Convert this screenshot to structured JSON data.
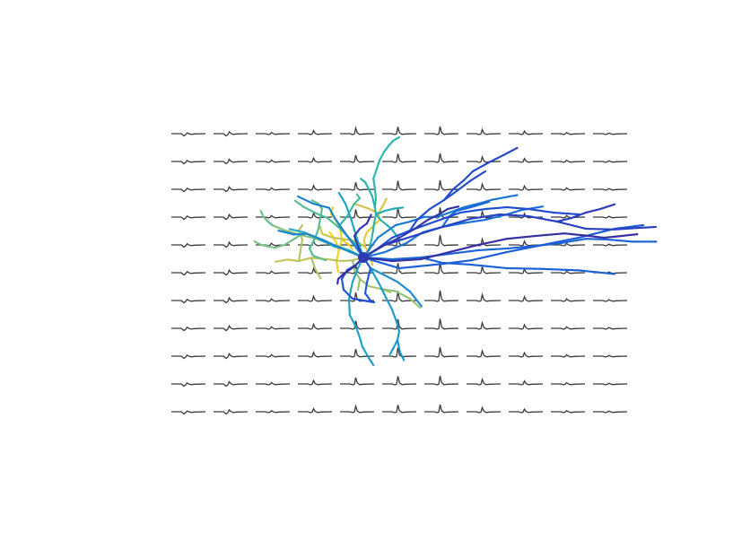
{
  "colors": {
    "background": "#ffffff",
    "trace": "#3a3a3a",
    "colormap": [
      "#3a2a98",
      "#1d4fd8",
      "#1b6fd6",
      "#1ba3c8",
      "#2fb7a6",
      "#6fc08a",
      "#a9c56a",
      "#d9c24a",
      "#f5d51e"
    ]
  },
  "grid": {
    "rows": 11,
    "cols": 11,
    "spike_amplitude_by_column": [
      0.1,
      0.25,
      0.15,
      0.4,
      0.75,
      0.9,
      0.95,
      0.55,
      0.35,
      0.15,
      0.08
    ]
  },
  "branches": [
    {
      "c": 0.97,
      "pts": [
        [
          -7,
          4
        ],
        [
          -7.5,
          1
        ],
        [
          -6.8,
          -2
        ],
        [
          -6,
          -5
        ],
        [
          -6.5,
          -8
        ],
        [
          -8,
          -11
        ],
        [
          -9,
          -12
        ],
        [
          -8.5,
          -14
        ]
      ]
    },
    {
      "c": 0.96,
      "pts": [
        [
          -6.8,
          -2
        ],
        [
          -7.5,
          -4
        ],
        [
          -8.6,
          -6
        ],
        [
          -9.4,
          -7
        ]
      ]
    },
    {
      "c": 0.94,
      "pts": [
        [
          -6,
          -5
        ],
        [
          -4,
          -3.5
        ],
        [
          -3,
          -2.2
        ]
      ]
    },
    {
      "c": 0.9,
      "pts": [
        [
          2.5,
          2
        ],
        [
          1.8,
          -1
        ],
        [
          0.5,
          -3
        ],
        [
          0.2,
          -5
        ],
        [
          1,
          -7
        ],
        [
          3,
          -9
        ],
        [
          4.5,
          -10.5
        ],
        [
          4.2,
          -12.3
        ]
      ]
    },
    {
      "c": 0.86,
      "pts": [
        [
          4.2,
          -12.3
        ],
        [
          5.5,
          -14.5
        ],
        [
          6.5,
          -16.5
        ]
      ]
    },
    {
      "c": 0.83,
      "pts": [
        [
          4.2,
          -12.3
        ],
        [
          3,
          -12.9
        ],
        [
          1.5,
          -13.6
        ],
        [
          -0.5,
          -14.3
        ],
        [
          -2.5,
          -15
        ]
      ]
    },
    {
      "c": 0.8,
      "pts": [
        [
          0.5,
          -3
        ],
        [
          -2,
          -4.5
        ],
        [
          -4.6,
          -5
        ],
        [
          -8.5,
          -5.5
        ],
        [
          -11.5,
          -6.6
        ],
        [
          -12,
          -8.5
        ]
      ]
    },
    {
      "c": 0.78,
      "pts": [
        [
          0,
          0
        ],
        [
          -3,
          0.8
        ],
        [
          -6,
          1
        ],
        [
          -10,
          0.5
        ],
        [
          -14.5,
          0.1
        ],
        [
          -18,
          1
        ],
        [
          -21,
          0.6
        ],
        [
          -24.5,
          1.2
        ]
      ]
    },
    {
      "c": 0.76,
      "pts": [
        [
          -18,
          1
        ],
        [
          -17.5,
          -2
        ],
        [
          -17,
          -5
        ],
        [
          -18,
          -7.5
        ],
        [
          -17,
          -9
        ]
      ]
    },
    {
      "c": 0.74,
      "pts": [
        [
          -14.5,
          0.1
        ],
        [
          -13.5,
          3
        ],
        [
          -11.8,
          6
        ]
      ]
    },
    {
      "c": 0.72,
      "pts": [
        [
          -3,
          0.8
        ],
        [
          -2.5,
          3.5
        ],
        [
          -1,
          6
        ],
        [
          1.5,
          8
        ],
        [
          5,
          8.8
        ],
        [
          7.5,
          9.7
        ]
      ]
    },
    {
      "c": 0.7,
      "pts": [
        [
          -1,
          6
        ],
        [
          -1.5,
          9
        ]
      ]
    },
    {
      "c": 0.68,
      "pts": [
        [
          5,
          8.8
        ],
        [
          9,
          9.4
        ],
        [
          13,
          11.5
        ],
        [
          15.8,
          14
        ]
      ]
    },
    {
      "c": 0.63,
      "pts": [
        [
          0,
          0
        ],
        [
          -3,
          -1.5
        ],
        [
          -6.5,
          -3
        ],
        [
          -10,
          -4
        ],
        [
          -13.5,
          -5.3
        ],
        [
          -17.5,
          -6.3
        ],
        [
          -22,
          -7.6
        ],
        [
          -25.4,
          -9
        ]
      ]
    },
    {
      "c": 0.61,
      "pts": [
        [
          -17.5,
          -6.3
        ],
        [
          -19.5,
          -5
        ],
        [
          -22,
          -3.5
        ],
        [
          -24.7,
          -2.7
        ],
        [
          -28.5,
          -3.5
        ],
        [
          -30.5,
          -4.6
        ]
      ]
    },
    {
      "c": 0.59,
      "pts": [
        [
          -25.4,
          -9
        ],
        [
          -26.6,
          -10
        ],
        [
          -27.8,
          -11.3
        ],
        [
          -28.6,
          -13
        ]
      ]
    },
    {
      "c": 0.57,
      "pts": [
        [
          -13.5,
          -5.3
        ],
        [
          -12.5,
          -8
        ],
        [
          -12,
          -11
        ],
        [
          -11.5,
          -13.5
        ],
        [
          -12.5,
          -15
        ],
        [
          -14.5,
          -16
        ]
      ]
    },
    {
      "c": 0.55,
      "pts": [
        [
          -13.5,
          -5.3
        ],
        [
          -15,
          -2.5
        ],
        [
          -14,
          -0.5
        ],
        [
          -10.5,
          0.8
        ]
      ]
    },
    {
      "c": 0.53,
      "pts": [
        [
          0,
          0
        ],
        [
          -1.5,
          -3
        ],
        [
          -4,
          -5.5
        ],
        [
          -7,
          -8.5
        ],
        [
          -10,
          -11
        ],
        [
          -12.5,
          -12
        ],
        [
          -16.5,
          -14
        ],
        [
          -19,
          -15.8
        ]
      ]
    },
    {
      "c": 0.51,
      "pts": [
        [
          -7,
          -8.5
        ],
        [
          -4.5,
          -11.5
        ],
        [
          -2.5,
          -15
        ],
        [
          -1,
          -16.5
        ],
        [
          -1.8,
          -17.6
        ]
      ]
    },
    {
      "c": 0.49,
      "pts": [
        [
          0,
          0
        ],
        [
          1.5,
          -2
        ],
        [
          2.3,
          -5
        ],
        [
          2.7,
          -7.5
        ],
        [
          3,
          -9.5
        ],
        [
          3.5,
          -12
        ],
        [
          3.2,
          -14
        ],
        [
          3.5,
          -16.5
        ],
        [
          3.2,
          -19.3
        ],
        [
          2.8,
          -22
        ],
        [
          3.5,
          -24
        ],
        [
          4.5,
          -27
        ],
        [
          5.8,
          -29.5
        ],
        [
          7.2,
          -31.3
        ],
        [
          8.3,
          -32.5
        ],
        [
          10,
          -33.5
        ]
      ]
    },
    {
      "c": 0.47,
      "pts": [
        [
          3.2,
          -14
        ],
        [
          2.5,
          -17
        ],
        [
          1.5,
          -19
        ],
        [
          0.5,
          -21
        ],
        [
          -0.8,
          -22
        ]
      ]
    },
    {
      "c": 0.45,
      "pts": [
        [
          3.5,
          -12
        ],
        [
          5,
          -10.3
        ],
        [
          6.6,
          -9
        ],
        [
          7.8,
          -8
        ],
        [
          9,
          -6.4
        ],
        [
          10.3,
          -4.9
        ]
      ]
    },
    {
      "c": 0.44,
      "pts": [
        [
          3.5,
          -12
        ],
        [
          6,
          -13
        ],
        [
          8.5,
          -13.6
        ],
        [
          11,
          -13.9
        ]
      ]
    },
    {
      "c": 0.42,
      "pts": [
        [
          0,
          0
        ],
        [
          -4,
          -2
        ],
        [
          -8,
          -3
        ],
        [
          -13,
          -5.5
        ],
        [
          -16.5,
          -7
        ],
        [
          -20.5,
          -7.9
        ]
      ]
    },
    {
      "c": 0.4,
      "pts": [
        [
          0,
          0
        ],
        [
          -2,
          -6
        ],
        [
          -3.5,
          -11
        ],
        [
          -5,
          -15
        ],
        [
          -6.8,
          -18
        ]
      ]
    },
    {
      "c": 0.38,
      "pts": [
        [
          0,
          0
        ],
        [
          -1.5,
          3
        ],
        [
          -3,
          6.8
        ],
        [
          -4,
          11.5
        ],
        [
          -3.8,
          16
        ],
        [
          -2,
          19.5
        ],
        [
          -1,
          22.3
        ],
        [
          -0.3,
          24.8
        ],
        [
          1.5,
          28
        ],
        [
          2.8,
          30
        ]
      ]
    },
    {
      "c": 0.36,
      "pts": [
        [
          0,
          0
        ],
        [
          2,
          3
        ],
        [
          4.5,
          7.5
        ],
        [
          6.3,
          11.2
        ],
        [
          8,
          14.5
        ],
        [
          9.2,
          17.8
        ],
        [
          10,
          20.6
        ],
        [
          9.5,
          23
        ],
        [
          10.2,
          26.4
        ],
        [
          11.3,
          28.6
        ]
      ]
    },
    {
      "c": 0.35,
      "pts": [
        [
          9.5,
          23
        ],
        [
          8.3,
          25.4
        ],
        [
          7.4,
          27
        ]
      ]
    },
    {
      "c": 0.33,
      "pts": [
        [
          2,
          3
        ],
        [
          6,
          5
        ],
        [
          9.5,
          6.8
        ],
        [
          13,
          9.5
        ],
        [
          16.2,
          13.6
        ]
      ]
    },
    {
      "c": 0.31,
      "pts": [
        [
          0,
          0
        ],
        [
          -6,
          -2.5
        ],
        [
          -11.5,
          -5
        ],
        [
          -15.8,
          -6.6
        ],
        [
          -19.4,
          -6.4
        ],
        [
          -23.7,
          -7.5
        ]
      ]
    },
    {
      "c": 0.3,
      "pts": [
        [
          0,
          0
        ],
        [
          -4.5,
          -6
        ],
        [
          -8,
          -11
        ],
        [
          -9.5,
          -13.8
        ],
        [
          -14,
          -15
        ],
        [
          -18.2,
          -17
        ]
      ]
    },
    {
      "c": 0.28,
      "pts": [
        [
          0,
          0
        ],
        [
          4,
          -5.5
        ],
        [
          9,
          -9
        ],
        [
          13,
          -10
        ],
        [
          17,
          -11.3
        ],
        [
          20.5,
          -11.3
        ],
        [
          24,
          -12.5
        ],
        [
          28,
          -14
        ],
        [
          32,
          -15
        ],
        [
          36,
          -16.1
        ],
        [
          39.7,
          -16.8
        ],
        [
          43,
          -17.4
        ]
      ]
    },
    {
      "c": 0.26,
      "pts": [
        [
          0,
          0
        ],
        [
          6,
          -1.5
        ],
        [
          12,
          -4
        ],
        [
          16.5,
          -7
        ],
        [
          22,
          -8.5
        ],
        [
          28,
          -9.6
        ],
        [
          34,
          -10.5
        ],
        [
          40,
          -12
        ],
        [
          44,
          -13.2
        ],
        [
          50,
          -14.2
        ]
      ]
    },
    {
      "c": 0.24,
      "pts": [
        [
          22,
          -8.5
        ],
        [
          24,
          -11.5
        ],
        [
          26,
          -13
        ],
        [
          30,
          -14
        ],
        [
          35,
          -15.5
        ]
      ]
    },
    {
      "c": 0.22,
      "pts": [
        [
          0,
          0
        ],
        [
          8,
          0.5
        ],
        [
          16,
          0
        ],
        [
          24,
          -1
        ],
        [
          32,
          -2
        ],
        [
          40,
          -2.5
        ],
        [
          48,
          -3.2
        ],
        [
          55,
          -4
        ],
        [
          62,
          -5.2
        ],
        [
          68,
          -5
        ],
        [
          75,
          -4.4
        ],
        [
          81.6,
          -4.4
        ]
      ]
    },
    {
      "c": 0.21,
      "pts": [
        [
          16,
          0
        ],
        [
          22,
          1.5
        ],
        [
          30,
          2
        ],
        [
          40,
          3
        ],
        [
          50,
          3.2
        ],
        [
          60,
          3.6
        ],
        [
          70,
          4.6
        ]
      ]
    },
    {
      "c": 0.19,
      "pts": [
        [
          0,
          0
        ],
        [
          5,
          1.5
        ],
        [
          10,
          3
        ],
        [
          15,
          2.5
        ],
        [
          22,
          1.8
        ],
        [
          30,
          0.8
        ],
        [
          40,
          -1.5
        ],
        [
          50,
          -3.5
        ],
        [
          60,
          -5.5
        ],
        [
          70,
          -8
        ],
        [
          78,
          -9
        ]
      ]
    },
    {
      "c": 0.17,
      "pts": [
        [
          0,
          0
        ],
        [
          2,
          3
        ],
        [
          1,
          7
        ],
        [
          0.5,
          10
        ],
        [
          2,
          12
        ]
      ]
    },
    {
      "c": 0.15,
      "pts": [
        [
          0,
          0
        ],
        [
          -2,
          2
        ],
        [
          -4.5,
          3.5
        ],
        [
          -6,
          6
        ],
        [
          -5.5,
          9
        ],
        [
          -3,
          11.5
        ],
        [
          0,
          12
        ],
        [
          3,
          12.5
        ]
      ]
    },
    {
      "c": 0.13,
      "pts": [
        [
          0,
          0
        ],
        [
          4,
          -2.5
        ],
        [
          8,
          -5.5
        ],
        [
          13,
          -7.5
        ],
        [
          20,
          -10
        ],
        [
          27,
          -12.5
        ],
        [
          34,
          -13.5
        ],
        [
          40,
          -14
        ],
        [
          46,
          -13.5
        ],
        [
          53,
          -12.5
        ],
        [
          60,
          -12
        ]
      ]
    },
    {
      "c": 0.12,
      "pts": [
        [
          13,
          -7.5
        ],
        [
          15,
          -10.5
        ],
        [
          18.5,
          -13.5
        ],
        [
          22.5,
          -16
        ],
        [
          26,
          -18.5
        ],
        [
          30,
          -21.5
        ],
        [
          34,
          -24
        ]
      ]
    },
    {
      "c": 0.11,
      "pts": [
        [
          22.5,
          -16
        ],
        [
          25,
          -19
        ],
        [
          28,
          -21.5
        ],
        [
          30.5,
          -24
        ],
        [
          35,
          -26.5
        ],
        [
          39,
          -28.5
        ],
        [
          43,
          -30.6
        ]
      ]
    },
    {
      "c": 0.09,
      "pts": [
        [
          0,
          0
        ],
        [
          6,
          -3.5
        ],
        [
          14,
          -6
        ],
        [
          22,
          -8.5
        ],
        [
          30,
          -10.8
        ],
        [
          38,
          -12
        ],
        [
          46,
          -11.5
        ],
        [
          54,
          -10
        ],
        [
          62,
          -8
        ],
        [
          70,
          -7.8
        ],
        [
          76,
          -8.2
        ],
        [
          81.5,
          -8.5
        ]
      ]
    },
    {
      "c": 0.07,
      "pts": [
        [
          54,
          -10
        ],
        [
          58,
          -11
        ],
        [
          62,
          -12.5
        ],
        [
          66,
          -13.5
        ],
        [
          70,
          -14.8
        ]
      ]
    },
    {
      "c": 0.06,
      "pts": [
        [
          0,
          0
        ],
        [
          -1.5,
          -3
        ],
        [
          -2.5,
          -6
        ],
        [
          -1,
          -8
        ],
        [
          1,
          -9.5
        ],
        [
          2.2,
          -12
        ]
      ]
    },
    {
      "c": 0.04,
      "pts": [
        [
          0,
          0
        ],
        [
          5,
          -3
        ],
        [
          10,
          -5.5
        ],
        [
          14,
          -7.8
        ],
        [
          18,
          -10.5
        ],
        [
          21,
          -12
        ],
        [
          23.5,
          -13.5
        ],
        [
          26.5,
          -14.2
        ]
      ]
    },
    {
      "c": 0.03,
      "pts": [
        [
          0,
          0
        ],
        [
          8,
          1
        ],
        [
          16,
          0.5
        ],
        [
          24,
          -1.5
        ],
        [
          32,
          -3.5
        ],
        [
          40,
          -5.2
        ],
        [
          48,
          -6
        ],
        [
          56,
          -6.7
        ],
        [
          62,
          -6.1
        ],
        [
          67,
          -5.5
        ],
        [
          72,
          -6
        ],
        [
          76.5,
          -6.5
        ]
      ]
    },
    {
      "c": 0.02,
      "pts": [
        [
          0,
          0
        ],
        [
          -2.5,
          2.5
        ],
        [
          -5.5,
          4.6
        ],
        [
          -7,
          6
        ],
        [
          -7.2,
          7.3
        ]
      ]
    }
  ]
}
